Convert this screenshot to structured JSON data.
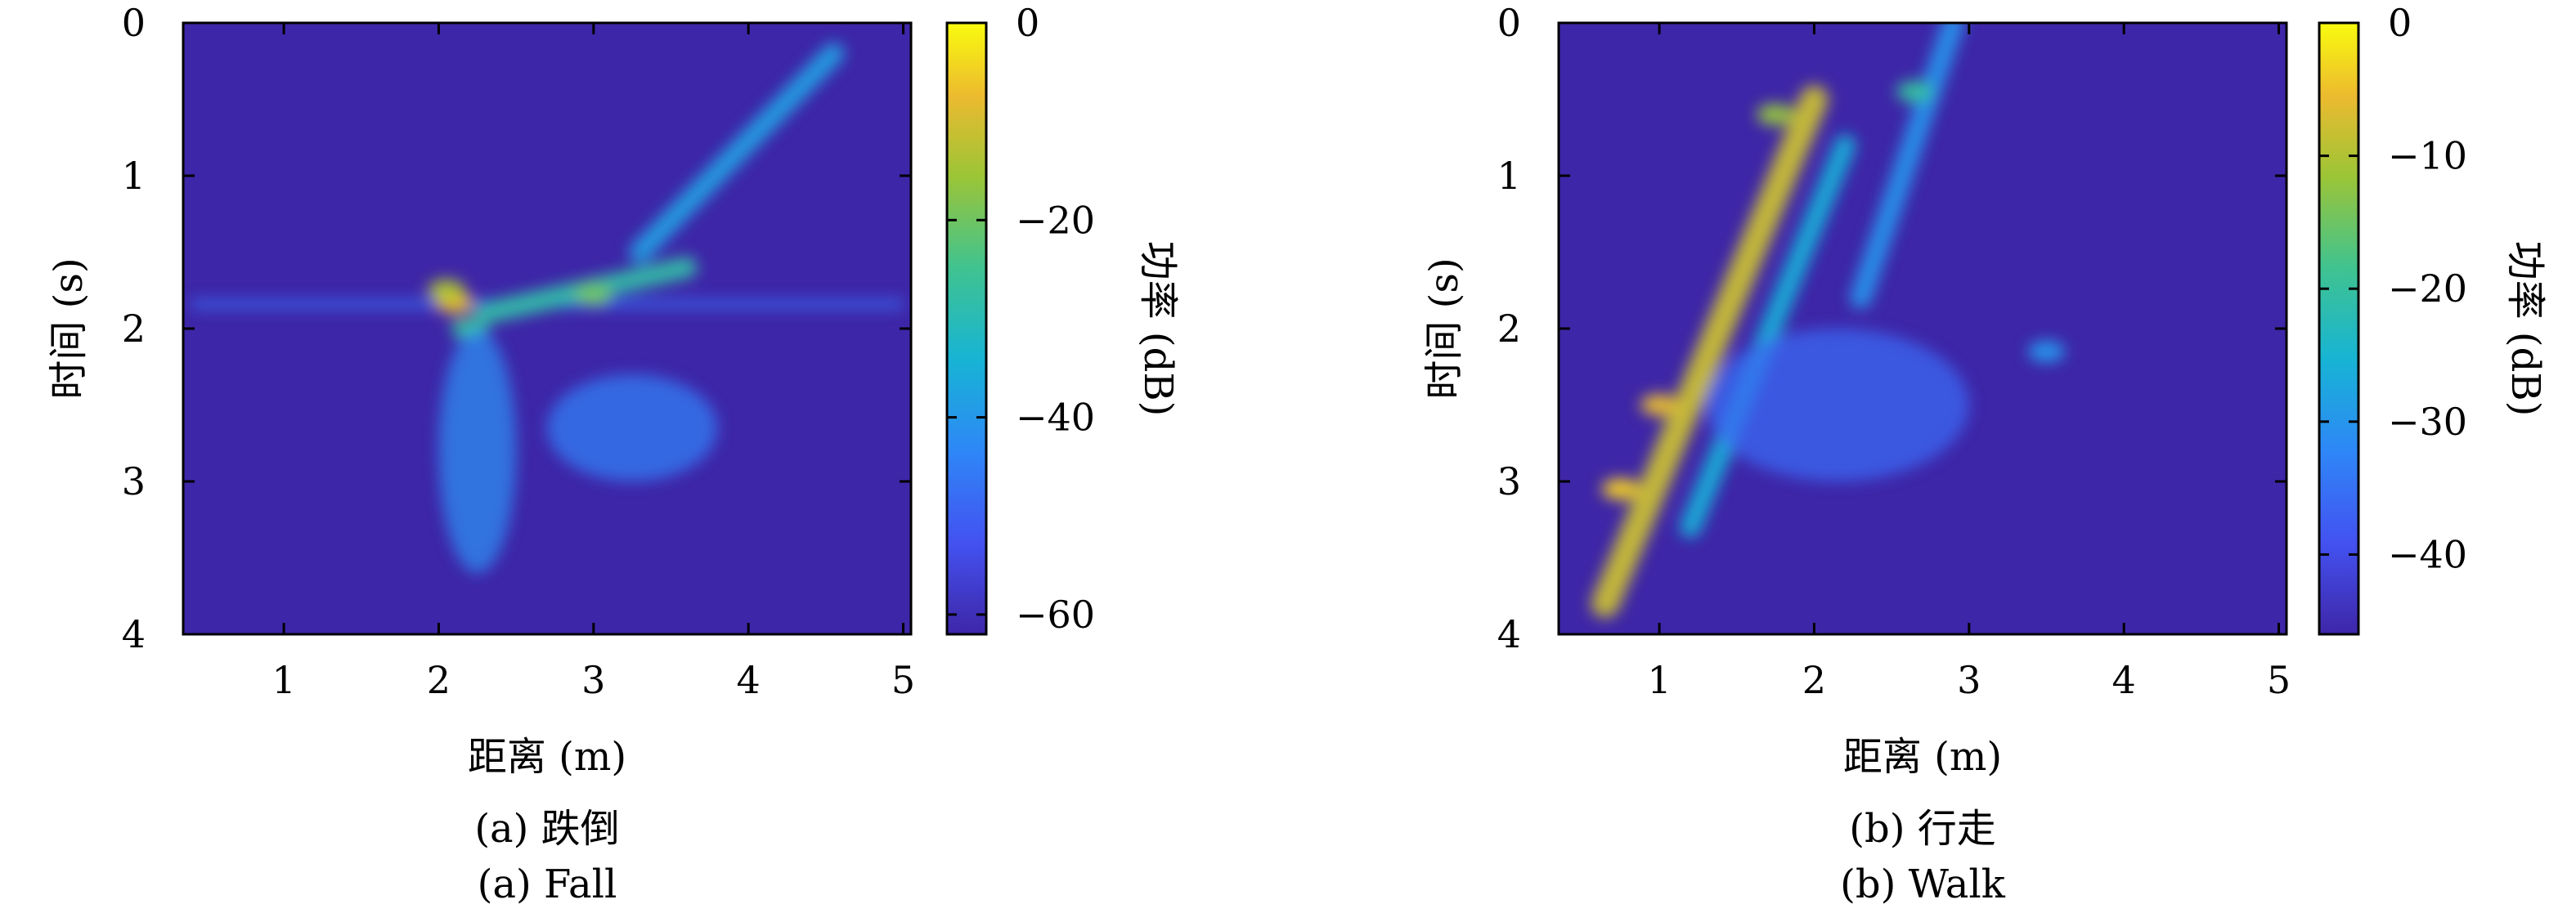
{
  "chart_data": [
    {
      "type": "heatmap",
      "caption_zh": "(a) 跌倒",
      "caption_en": "(a) Fall",
      "xlabel": "距离 (m)",
      "ylabel": "时间 (s)",
      "xlim": [
        0.35,
        5.05
      ],
      "ylim": [
        0,
        4
      ],
      "y_reversed": true,
      "x_ticks": [
        1,
        2,
        3,
        4,
        5
      ],
      "y_ticks": [
        0,
        1,
        2,
        3,
        4
      ],
      "colorbar": {
        "label": "功率 (dB)",
        "range": [
          -62,
          0
        ],
        "ticks": [
          0,
          -20,
          -40,
          -60
        ],
        "tick_labels": [
          "0",
          "−20",
          "−40",
          "−60"
        ],
        "colormap": "parula"
      },
      "background_level_db": -60,
      "features": [
        {
          "kind": "static_line",
          "y": 1.84,
          "x_range": [
            0.4,
            5.0
          ],
          "level_db": -48
        },
        {
          "kind": "hotspot",
          "x": 2.1,
          "y": 1.83,
          "level_db": -8
        },
        {
          "kind": "hotspot",
          "x": 2.05,
          "y": 1.75,
          "level_db": -14
        },
        {
          "kind": "hotspot",
          "x": 2.2,
          "y": 2.0,
          "level_db": -26
        },
        {
          "kind": "band",
          "from": [
            2.3,
            1.9
          ],
          "to": [
            3.6,
            1.6
          ],
          "level_db": -28
        },
        {
          "kind": "hotspot",
          "x": 3.0,
          "y": 1.78,
          "level_db": -20
        },
        {
          "kind": "band",
          "from": [
            3.3,
            1.5
          ],
          "to": [
            4.55,
            0.2
          ],
          "level_db": -38
        },
        {
          "kind": "spread",
          "x_range": [
            2.0,
            2.5
          ],
          "y_range": [
            2.0,
            3.6
          ],
          "level_db": -42
        },
        {
          "kind": "spread",
          "x_range": [
            2.7,
            3.8
          ],
          "y_range": [
            2.3,
            3.0
          ],
          "level_db": -45
        }
      ]
    },
    {
      "type": "heatmap",
      "caption_zh": "(b) 行走",
      "caption_en": "(b) Walk",
      "xlabel": "距离 (m)",
      "ylabel": "时间 (s)",
      "xlim": [
        0.35,
        5.05
      ],
      "ylim": [
        0,
        4
      ],
      "y_reversed": true,
      "x_ticks": [
        1,
        2,
        3,
        4,
        5
      ],
      "y_ticks": [
        0,
        1,
        2,
        3,
        4
      ],
      "colorbar": {
        "label": "功率 (dB)",
        "range": [
          -46,
          0
        ],
        "ticks": [
          0,
          -10,
          -20,
          -30,
          -40
        ],
        "tick_labels": [
          "0",
          "−10",
          "−20",
          "−30",
          "−40"
        ],
        "colormap": "parula"
      },
      "background_level_db": -44,
      "features": [
        {
          "kind": "band",
          "from": [
            0.65,
            3.8
          ],
          "to": [
            2.0,
            0.5
          ],
          "level_db": -8
        },
        {
          "kind": "band",
          "from": [
            1.2,
            3.3
          ],
          "to": [
            2.2,
            0.8
          ],
          "level_db": -26
        },
        {
          "kind": "band",
          "from": [
            2.3,
            1.8
          ],
          "to": [
            2.9,
            0.0
          ],
          "level_db": -30
        },
        {
          "kind": "hotspot",
          "x": 0.75,
          "y": 3.05,
          "level_db": -4
        },
        {
          "kind": "hotspot",
          "x": 1.0,
          "y": 2.5,
          "level_db": -6
        },
        {
          "kind": "hotspot",
          "x": 1.75,
          "y": 0.6,
          "level_db": -12
        },
        {
          "kind": "hotspot",
          "x": 2.65,
          "y": 0.45,
          "level_db": -20
        },
        {
          "kind": "hotspot",
          "x": 3.5,
          "y": 2.15,
          "level_db": -30
        },
        {
          "kind": "spread",
          "x_range": [
            1.3,
            3.0
          ],
          "y_range": [
            2.0,
            3.0
          ],
          "level_db": -36
        }
      ]
    }
  ]
}
